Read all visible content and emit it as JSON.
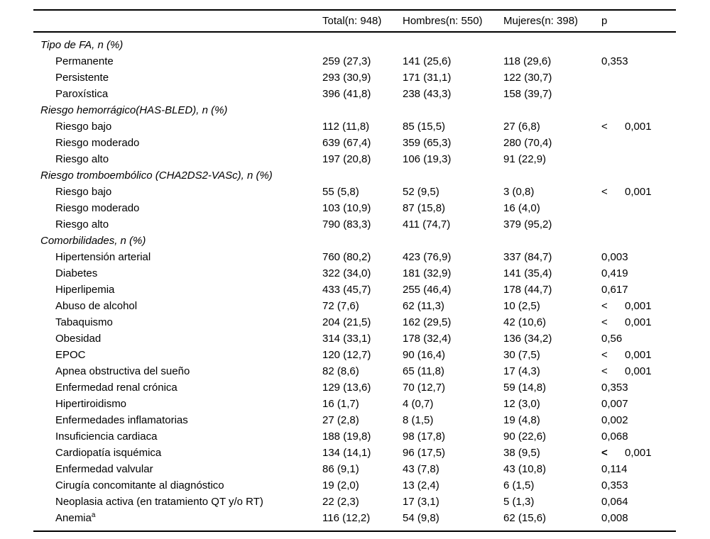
{
  "table": {
    "columns": {
      "label": "",
      "total": "Total(n: 948)",
      "hombres": "Hombres(n: 550)",
      "mujeres": "Mujeres(n: 398)",
      "p": "p"
    },
    "sections": [
      {
        "title": "Tipo de FA, n (%)",
        "rows": [
          {
            "label": "Permanente",
            "total": "259 (27,3)",
            "hombres": "141 (25,6)",
            "mujeres": "118 (29,6)",
            "p": "0,353"
          },
          {
            "label": "Persistente",
            "total": "293 (30,9)",
            "hombres": "171 (31,1)",
            "mujeres": "122 (30,7)",
            "p": ""
          },
          {
            "label": "Paroxística",
            "total": "396 (41,8)",
            "hombres": "238 (43,3)",
            "mujeres": "158 (39,7)",
            "p": ""
          }
        ]
      },
      {
        "title": "Riesgo hemorrágico(HAS-BLED), n (%)",
        "rows": [
          {
            "label": "Riesgo bajo",
            "total": "112 (11,8)",
            "hombres": "85 (15,5)",
            "mujeres": "27 (6,8)",
            "p": "0,001",
            "p_lt": true
          },
          {
            "label": "Riesgo moderado",
            "total": "639 (67,4)",
            "hombres": "359 (65,3)",
            "mujeres": "280 (70,4)",
            "p": ""
          },
          {
            "label": "Riesgo alto",
            "total": "197 (20,8)",
            "hombres": "106 (19,3)",
            "mujeres": "91 (22,9)",
            "p": ""
          }
        ]
      },
      {
        "title": "Riesgo tromboembólico (CHA2DS2-VASc), n (%)",
        "rows": [
          {
            "label": "Riesgo bajo",
            "total": "55 (5,8)",
            "hombres": "52 (9,5)",
            "mujeres": "3 (0,8)",
            "p": "0,001",
            "p_lt": true
          },
          {
            "label": "Riesgo moderado",
            "total": "103 (10,9)",
            "hombres": "87 (15,8)",
            "mujeres": "16 (4,0)",
            "p": ""
          },
          {
            "label": "Riesgo alto",
            "total": "790 (83,3)",
            "hombres": "411 (74,7)",
            "mujeres": "379 (95,2)",
            "p": ""
          }
        ]
      },
      {
        "title": "Comorbilidades, n (%)",
        "rows": [
          {
            "label": "Hipertensión arterial",
            "total": "760 (80,2)",
            "hombres": "423 (76,9)",
            "mujeres": "337 (84,7)",
            "p": "0,003"
          },
          {
            "label": "Diabetes",
            "total": "322 (34,0)",
            "hombres": "181 (32,9)",
            "mujeres": "141 (35,4)",
            "p": "0,419"
          },
          {
            "label": "Hiperlipemia",
            "total": "433 (45,7)",
            "hombres": "255 (46,4)",
            "mujeres": "178 (44,7)",
            "p": "0,617"
          },
          {
            "label": "Abuso de alcohol",
            "total": "72 (7,6)",
            "hombres": "62 (11,3)",
            "mujeres": "10 (2,5)",
            "p": "0,001",
            "p_lt": true
          },
          {
            "label": "Tabaquismo",
            "total": "204 (21,5)",
            "hombres": "162 (29,5)",
            "mujeres": "42 (10,6)",
            "p": "0,001",
            "p_lt": true
          },
          {
            "label": "Obesidad",
            "total": "314 (33,1)",
            "hombres": "178 (32,4)",
            "mujeres": "136 (34,2)",
            "p": "0,56"
          },
          {
            "label": "EPOC",
            "total": "120 (12,7)",
            "hombres": "90 (16,4)",
            "mujeres": "30 (7,5)",
            "p": "0,001",
            "p_lt": true
          },
          {
            "label": "Apnea obstructiva del sueño",
            "total": "82 (8,6)",
            "hombres": "65 (11,8)",
            "mujeres": "17 (4,3)",
            "p": "0,001",
            "p_lt": true
          },
          {
            "label": "Enfermedad renal crónica",
            "total": "129 (13,6)",
            "hombres": "70 (12,7)",
            "mujeres": "59 (14,8)",
            "p": "0,353"
          },
          {
            "label": "Hipertiroidismo",
            "total": "16 (1,7)",
            "hombres": "4 (0,7)",
            "mujeres": "12 (3,0)",
            "p": "0,007"
          },
          {
            "label": "Enfermedades inflamatorias",
            "total": "27 (2,8)",
            "hombres": "8 (1,5)",
            "mujeres": "19 (4,8)",
            "p": "0,002"
          },
          {
            "label": "Insuficiencia cardiaca",
            "total": "188 (19,8)",
            "hombres": "98 (17,8)",
            "mujeres": "90 (22,6)",
            "p": "0,068"
          },
          {
            "label": "Cardiopatía isquémica",
            "total": "134 (14,1)",
            "hombres": "96 (17,5)",
            "mujeres": "38 (9,5)",
            "p": "0,001",
            "p_lt": true,
            "p_lt_bold": true
          },
          {
            "label": "Enfermedad valvular",
            "total": "86 (9,1)",
            "hombres": "43 (7,8)",
            "mujeres": "43 (10,8)",
            "p": "0,114"
          },
          {
            "label": "Cirugía concomitante al diagnóstico",
            "total": "19 (2,0)",
            "hombres": "13 (2,4)",
            "mujeres": "6 (1,5)",
            "p": "0,353"
          },
          {
            "label": "Neoplasia activa (en tratamiento QT y/o RT)",
            "total": "22 (2,3)",
            "hombres": "17 (3,1)",
            "mujeres": "5 (1,3)",
            "p": "0,064"
          },
          {
            "label": "Anemia",
            "label_sup": "a",
            "total": "116 (12,2)",
            "hombres": "54 (9,8)",
            "mujeres": "62 (15,6)",
            "p": "0,008"
          }
        ]
      }
    ],
    "text_color": "#000000",
    "background_color": "#ffffff"
  }
}
